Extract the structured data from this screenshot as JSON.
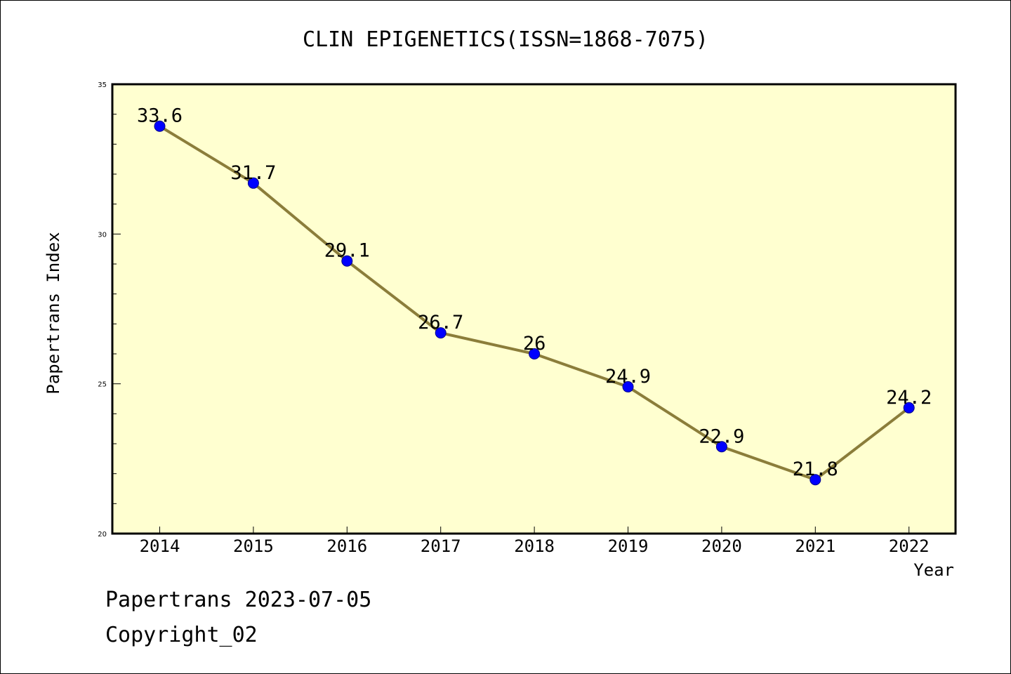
{
  "chart_data": {
    "type": "line",
    "title": "CLIN EPIGENETICS(ISSN=1868-7075)",
    "xlabel": "Year",
    "ylabel": "Papertrans Index",
    "x": [
      "2014",
      "2015",
      "2016",
      "2017",
      "2018",
      "2019",
      "2020",
      "2021",
      "2022"
    ],
    "values": [
      33.6,
      31.7,
      29.1,
      26.7,
      26,
      24.9,
      22.9,
      21.8,
      24.2
    ],
    "data_labels": [
      "33.6",
      "31.7",
      "29.1",
      "26.7",
      "26",
      "24.9",
      "22.9",
      "21.8",
      "24.2"
    ],
    "ylim": [
      20,
      35
    ],
    "yticks": [
      "20",
      "25",
      "30",
      "35"
    ],
    "grid": false,
    "colors": {
      "plot_background": "#ffffd0",
      "line": "#8b7d3a",
      "marker": "#0000ff"
    }
  },
  "footer": {
    "line1": "Papertrans 2023-07-05",
    "line2": "Copyright_02"
  }
}
